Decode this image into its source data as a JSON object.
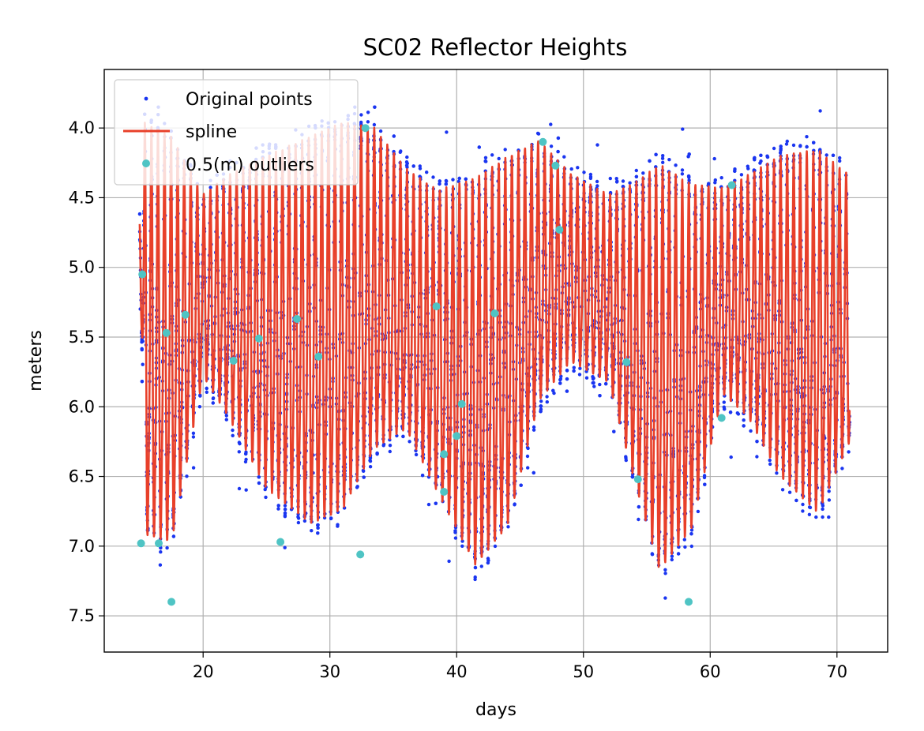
{
  "chart_data": {
    "type": "scatter",
    "title": "SC02 Reflector Heights",
    "xlabel": "days",
    "ylabel": "meters",
    "xlim": [
      12.2,
      74.0
    ],
    "ylim": [
      7.76,
      3.58
    ],
    "y_inverted": true,
    "grid": true,
    "legend_position": "top-left",
    "x_ticks": [
      20,
      30,
      40,
      50,
      60,
      70
    ],
    "x_tick_labels": [
      "20",
      "30",
      "40",
      "50",
      "60",
      "70"
    ],
    "y_ticks": [
      4.0,
      4.5,
      5.0,
      5.5,
      6.0,
      6.5,
      7.0,
      7.5
    ],
    "y_tick_labels": [
      "4.0",
      "4.5",
      "5.0",
      "5.5",
      "6.0",
      "6.5",
      "7.0",
      "7.5"
    ],
    "colors": {
      "points": "#1a35f0",
      "spline": "#e8402a",
      "outliers": "#4fc4c4"
    },
    "series": [
      {
        "name": "Original points",
        "kind": "scatter",
        "x_range": [
          15.0,
          71.0
        ],
        "approx_tidal_period_days": 0.517,
        "approx_envelope_min_m": 3.85,
        "approx_envelope_max_m": 7.57
      },
      {
        "name": "spline",
        "kind": "line",
        "envelope": [
          {
            "x": 15.0,
            "low": 4.65,
            "high": 4.72
          },
          {
            "x": 15.4,
            "low": 3.9,
            "high": 7.3
          },
          {
            "x": 17.5,
            "low": 4.0,
            "high": 7.35
          },
          {
            "x": 20.0,
            "low": 4.45,
            "high": 5.95
          },
          {
            "x": 22.0,
            "low": 4.3,
            "high": 6.3
          },
          {
            "x": 25.0,
            "low": 4.15,
            "high": 6.9
          },
          {
            "x": 28.5,
            "low": 4.0,
            "high": 7.2
          },
          {
            "x": 31.0,
            "low": 3.9,
            "high": 7.1
          },
          {
            "x": 33.5,
            "low": 3.95,
            "high": 6.6
          },
          {
            "x": 36.0,
            "low": 4.25,
            "high": 6.4
          },
          {
            "x": 38.5,
            "low": 4.4,
            "high": 6.9
          },
          {
            "x": 41.5,
            "low": 4.3,
            "high": 7.5
          },
          {
            "x": 44.0,
            "low": 4.15,
            "high": 7.2
          },
          {
            "x": 46.5,
            "low": 4.05,
            "high": 6.2
          },
          {
            "x": 49.0,
            "low": 4.3,
            "high": 5.85
          },
          {
            "x": 52.0,
            "low": 4.45,
            "high": 6.0
          },
          {
            "x": 54.0,
            "low": 4.35,
            "high": 6.8
          },
          {
            "x": 56.0,
            "low": 4.2,
            "high": 7.55
          },
          {
            "x": 58.5,
            "low": 4.35,
            "high": 7.2
          },
          {
            "x": 61.0,
            "low": 4.4,
            "high": 6.1
          },
          {
            "x": 63.0,
            "low": 4.3,
            "high": 6.3
          },
          {
            "x": 65.5,
            "low": 4.15,
            "high": 6.8
          },
          {
            "x": 68.5,
            "low": 4.1,
            "high": 7.1
          },
          {
            "x": 71.0,
            "low": 4.3,
            "high": 6.5
          },
          {
            "x": 71.2,
            "low": 4.95,
            "high": 5.05
          }
        ]
      },
      {
        "name": "0.5(m) outliers",
        "kind": "scatter",
        "points": [
          {
            "x": 15.2,
            "y": 5.05
          },
          {
            "x": 15.1,
            "y": 6.98
          },
          {
            "x": 16.5,
            "y": 6.98
          },
          {
            "x": 17.1,
            "y": 5.47
          },
          {
            "x": 17.5,
            "y": 7.4
          },
          {
            "x": 18.6,
            "y": 5.34
          },
          {
            "x": 22.4,
            "y": 5.67
          },
          {
            "x": 24.4,
            "y": 5.51
          },
          {
            "x": 26.1,
            "y": 6.97
          },
          {
            "x": 27.4,
            "y": 5.37
          },
          {
            "x": 29.1,
            "y": 5.64
          },
          {
            "x": 32.4,
            "y": 7.06
          },
          {
            "x": 32.8,
            "y": 4.0
          },
          {
            "x": 38.4,
            "y": 5.28
          },
          {
            "x": 39.0,
            "y": 6.34
          },
          {
            "x": 39.0,
            "y": 6.61
          },
          {
            "x": 40.0,
            "y": 6.21
          },
          {
            "x": 40.4,
            "y": 5.98
          },
          {
            "x": 43.0,
            "y": 5.33
          },
          {
            "x": 46.8,
            "y": 4.1
          },
          {
            "x": 47.8,
            "y": 4.27
          },
          {
            "x": 48.1,
            "y": 4.73
          },
          {
            "x": 53.4,
            "y": 5.68
          },
          {
            "x": 54.3,
            "y": 6.52
          },
          {
            "x": 58.3,
            "y": 7.4
          },
          {
            "x": 60.9,
            "y": 6.08
          },
          {
            "x": 61.7,
            "y": 4.41
          }
        ]
      }
    ]
  }
}
